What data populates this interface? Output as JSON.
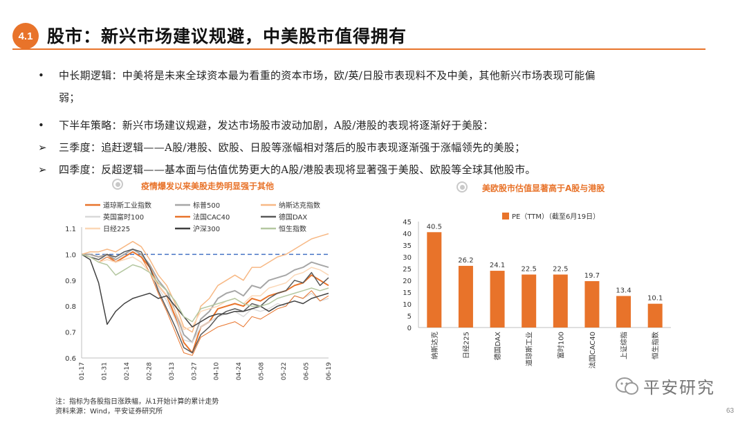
{
  "header": {
    "section_number": "4.1",
    "title": "股市：新兴市场建议规避，中美股市值得拥有"
  },
  "bullets": [
    {
      "marker": "•",
      "text": "中长期逻辑：中美将是未来全球资本最为看重的资本市场，欧/英/日股市表现料不及中美，其他新兴市场表现可能偏"
    },
    {
      "marker": "",
      "text": "弱；"
    },
    {
      "marker": "•",
      "text": "下半年策略：新兴市场建议规避，发达市场股市波动加剧，A股/港股的表现将逐渐好于美股："
    },
    {
      "marker": "➢",
      "text": "三季度：追赶逻辑——A股/港股、欧股、日股等涨幅相对落后的股市表现逐渐强于涨幅领先的美股；"
    },
    {
      "marker": "➢",
      "text": "四季度：反超逻辑——基本面与估值优势更大的A股/港股表现将显著强于美股、欧股等全球其他股市。"
    }
  ],
  "left_chart_title": "疫情爆发以来美股走势明显强于其他",
  "right_chart_title": "美欧股市估值显著高于A股与港股",
  "chart_data": [
    {
      "type": "line",
      "title": "疫情爆发以来美股走势明显强于其他",
      "xlabel": "",
      "ylabel": "",
      "x_ticks": [
        "01-17",
        "01-31",
        "02-14",
        "02-28",
        "03-13",
        "03-27",
        "04-10",
        "04-24",
        "05-08",
        "05-22",
        "06-05",
        "06-19"
      ],
      "y_ticks": [
        "1.1",
        "1.0",
        "0.9",
        "0.8",
        "0.7",
        "0.6"
      ],
      "ylim": [
        0.6,
        1.1
      ],
      "reference_line": 1.0,
      "series": [
        {
          "name": "道琼斯工业指数",
          "color": "#e8732a",
          "width": 2,
          "values": [
            1.0,
            1.0,
            0.99,
            1.0,
            0.97,
            0.99,
            1.01,
            0.99,
            0.95,
            0.88,
            0.84,
            0.76,
            0.66,
            0.62,
            0.72,
            0.74,
            0.79,
            0.8,
            0.81,
            0.8,
            0.83,
            0.82,
            0.84,
            0.85,
            0.86,
            0.88,
            0.89,
            0.92,
            0.9,
            0.88
          ]
        },
        {
          "name": "标普500",
          "color": "#a6a6a6",
          "width": 2,
          "values": [
            1.0,
            1.0,
            0.99,
            1.0,
            0.98,
            1.0,
            1.02,
            1.0,
            0.96,
            0.9,
            0.86,
            0.78,
            0.69,
            0.66,
            0.75,
            0.78,
            0.83,
            0.85,
            0.86,
            0.84,
            0.88,
            0.87,
            0.9,
            0.91,
            0.92,
            0.94,
            0.95,
            0.97,
            0.96,
            0.95
          ]
        },
        {
          "name": "纳斯达克指数",
          "color": "#f7b884",
          "width": 1.5,
          "values": [
            1.0,
            1.01,
            1.01,
            1.02,
            1.01,
            1.03,
            1.05,
            1.03,
            0.98,
            0.92,
            0.88,
            0.81,
            0.72,
            0.7,
            0.8,
            0.83,
            0.88,
            0.9,
            0.92,
            0.9,
            0.95,
            0.95,
            0.97,
            0.99,
            1.0,
            1.02,
            1.04,
            1.06,
            1.07,
            1.08
          ]
        },
        {
          "name": "英国富时100",
          "color": "#d9d9d9",
          "width": 1.5,
          "values": [
            1.0,
            0.99,
            0.98,
            0.99,
            0.97,
            0.98,
            0.99,
            0.97,
            0.93,
            0.87,
            0.82,
            0.75,
            0.67,
            0.66,
            0.72,
            0.74,
            0.76,
            0.77,
            0.78,
            0.76,
            0.79,
            0.78,
            0.79,
            0.81,
            0.8,
            0.84,
            0.83,
            0.85,
            0.82,
            0.83
          ]
        },
        {
          "name": "法国CAC40",
          "color": "#e8732a",
          "width": 1,
          "values": [
            1.0,
            0.99,
            0.97,
            0.99,
            0.97,
            0.99,
            1.01,
            0.99,
            0.93,
            0.85,
            0.78,
            0.7,
            0.62,
            0.61,
            0.68,
            0.7,
            0.72,
            0.73,
            0.74,
            0.72,
            0.76,
            0.75,
            0.77,
            0.79,
            0.8,
            0.84,
            0.83,
            0.86,
            0.82,
            0.84
          ]
        },
        {
          "name": "德国DAX",
          "color": "#595959",
          "width": 1.5,
          "values": [
            1.0,
            0.99,
            0.98,
            1.0,
            0.99,
            1.01,
            1.02,
            1.01,
            0.95,
            0.86,
            0.79,
            0.72,
            0.64,
            0.62,
            0.69,
            0.72,
            0.76,
            0.78,
            0.79,
            0.78,
            0.81,
            0.8,
            0.83,
            0.85,
            0.86,
            0.9,
            0.89,
            0.93,
            0.88,
            0.91
          ]
        },
        {
          "name": "日经225",
          "color": "#fbd7b6",
          "width": 1.5,
          "values": [
            1.0,
            0.99,
            0.97,
            0.98,
            0.97,
            0.98,
            0.99,
            0.97,
            0.93,
            0.88,
            0.84,
            0.78,
            0.71,
            0.72,
            0.78,
            0.79,
            0.8,
            0.82,
            0.83,
            0.81,
            0.84,
            0.84,
            0.87,
            0.88,
            0.89,
            0.92,
            0.93,
            0.95,
            0.94,
            0.92
          ]
        },
        {
          "name": "沪深300",
          "color": "#404040",
          "width": 1.5,
          "values": [
            1.0,
            0.98,
            0.89,
            0.73,
            0.78,
            0.81,
            0.83,
            0.84,
            0.85,
            0.83,
            0.84,
            0.8,
            0.76,
            0.72,
            0.74,
            0.76,
            0.77,
            0.77,
            0.78,
            0.78,
            0.79,
            0.8,
            0.78,
            0.8,
            0.81,
            0.82,
            0.81,
            0.83,
            0.84,
            0.85
          ]
        },
        {
          "name": "恒生指数",
          "color": "#b4c7a0",
          "width": 1.5,
          "values": [
            1.0,
            0.99,
            0.97,
            0.96,
            0.92,
            0.94,
            0.96,
            0.95,
            0.93,
            0.89,
            0.86,
            0.82,
            0.76,
            0.74,
            0.79,
            0.8,
            0.81,
            0.82,
            0.83,
            0.81,
            0.8,
            0.8,
            0.81,
            0.83,
            0.84,
            0.85,
            0.86,
            0.87,
            0.86,
            0.87
          ]
        }
      ]
    },
    {
      "type": "bar",
      "title": "美欧股市估值显著高于A股与港股",
      "legend": "PE（TTM）（截至6月19日）",
      "color": "#e8732a",
      "categories": [
        "纳斯达克",
        "日经225",
        "德国DAX",
        "道琼斯工业",
        "富时100",
        "法国CAC40",
        "上证综指",
        "恒生指数"
      ],
      "values": [
        40.5,
        26.2,
        24.1,
        22.5,
        22.5,
        19.7,
        13.4,
        10.1
      ],
      "value_labels": [
        "40.5",
        "26.2",
        "24.1",
        "22.5",
        "22.5",
        "19.7",
        "13.4",
        "10.1"
      ],
      "y_ticks": [
        "45",
        "40",
        "35",
        "30",
        "25",
        "20",
        "15",
        "10",
        "5",
        "0"
      ],
      "ylim": [
        0,
        45
      ]
    }
  ],
  "footnotes": {
    "note": "注：指标为各股指日涨跌幅，从1开始计算的累计走势",
    "source": "资料来源：Wind，平安证券研究所"
  },
  "watermark": "平安研究",
  "page_number": "63"
}
